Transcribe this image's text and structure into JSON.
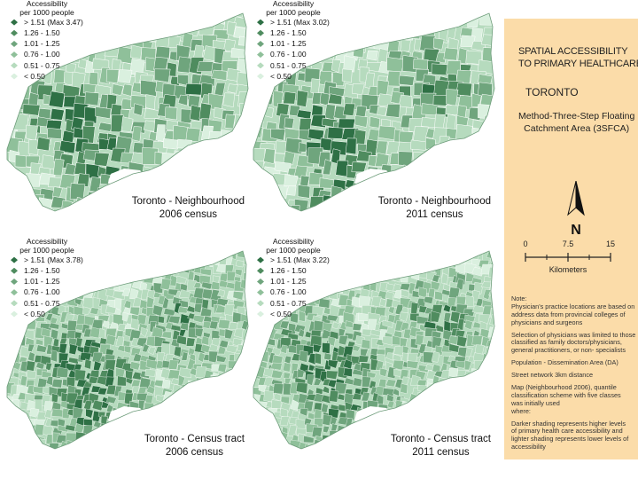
{
  "colors": {
    "shades": [
      "#2e7045",
      "#4f8c5f",
      "#6fa57d",
      "#8fc09a",
      "#b6dbbe",
      "#daf0df"
    ],
    "side_bg": "#fbdca9",
    "water": "#ffffff",
    "border": "#ffffff"
  },
  "legend": {
    "title": [
      "Accessibility",
      "per 1000 people"
    ],
    "classes": [
      "1.26 - 1.50",
      "1.01 - 1.25",
      "0.76 - 1.00",
      "0.51 - 0.75",
      "< 0.50"
    ]
  },
  "maps": [
    {
      "max_label": "> 1.51 (Max 3.47)",
      "caption": [
        "Toronto - Neighbourhood",
        "2006 census"
      ]
    },
    {
      "max_label": "> 1.51 (Max 3.02)",
      "caption": [
        "Toronto - Neighbourhood",
        "2011 census"
      ]
    },
    {
      "max_label": "> 1.51 (Max 3.78)",
      "caption": [
        "Toronto - Census tract",
        "2006 census"
      ]
    },
    {
      "max_label": "> 1.51 (Max 3.22)",
      "caption": [
        "Toronto - Census tract",
        "2011 census"
      ]
    }
  ],
  "sidebar": {
    "title": [
      "SPATIAL ACCESSIBILITY",
      "TO PRIMARY HEALTHCARE"
    ],
    "city": "TORONTO",
    "method": [
      "Method-Three-Step Floating",
      "Catchment Area (3SFCA)"
    ],
    "north": "N",
    "scale": {
      "ticks": [
        "0",
        "7.5",
        "15"
      ],
      "unit": "Kilometers"
    },
    "notes": [
      [
        "Note:",
        "Physician's practice locations are based on",
        "address data from provincial colleges of",
        "physicians and surgeons"
      ],
      [
        "Selection of physicians was limited to those",
        "classified as family doctors/physicians,",
        "general practitioners, or non- specialists"
      ],
      [
        "Population - Dissemination Area (DA)"
      ],
      [
        "Street network 3km distance"
      ],
      [
        "Map (Neighbourhood 2006), quantile",
        "classification scheme with five classes",
        "was initially used",
        "where:"
      ],
      [
        " Darker shading represents higher levels",
        " of primary health care accessibility and",
        " lighter shading represents lower levels of",
        " accessibility"
      ]
    ]
  }
}
